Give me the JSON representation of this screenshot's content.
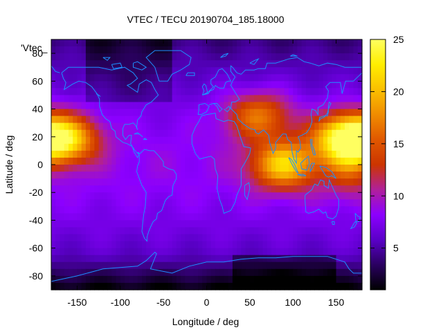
{
  "chart_data": {
    "type": "heatmap",
    "title": "VTEC / TECU 20190704_185.18000",
    "xlabel": "Longitude / deg",
    "ylabel": "Latitude / deg",
    "key_label": "'Vtec_",
    "xlim": [
      -180,
      180
    ],
    "ylim": [
      -90,
      90
    ],
    "x_ticks": [
      -150,
      -100,
      -50,
      0,
      50,
      100,
      150
    ],
    "y_ticks": [
      -80,
      -60,
      -40,
      -20,
      0,
      20,
      40,
      60,
      80
    ],
    "colorbar": {
      "range": [
        1,
        25
      ],
      "ticks": [
        5,
        10,
        15,
        20,
        25
      ]
    },
    "palette": [
      "#000000",
      "#2a0060",
      "#5a00c8",
      "#8c00ff",
      "#b0209a",
      "#cc3500",
      "#e05800",
      "#f08c00",
      "#fac000",
      "#ffee00",
      "#ffff60"
    ],
    "coastline_color": "#1e90ff",
    "grid": false,
    "values_description": "VTEC ≈ 8–10 TECU over most of the globe; two equatorial-anomaly crests ≈ 14–23 TECU centered near lon 90–140 and near lon -180 to -150, latitudes -15 to 35; minimum ≈ 1–3 TECU near the south polar region.",
    "peaks": [
      {
        "lon": 90,
        "lat": 0,
        "value": 22
      },
      {
        "lon": 160,
        "lat": 20,
        "value": 23
      },
      {
        "lon": -165,
        "lat": 18,
        "value": 22
      },
      {
        "lon": 60,
        "lat": 35,
        "value": 18
      }
    ]
  }
}
